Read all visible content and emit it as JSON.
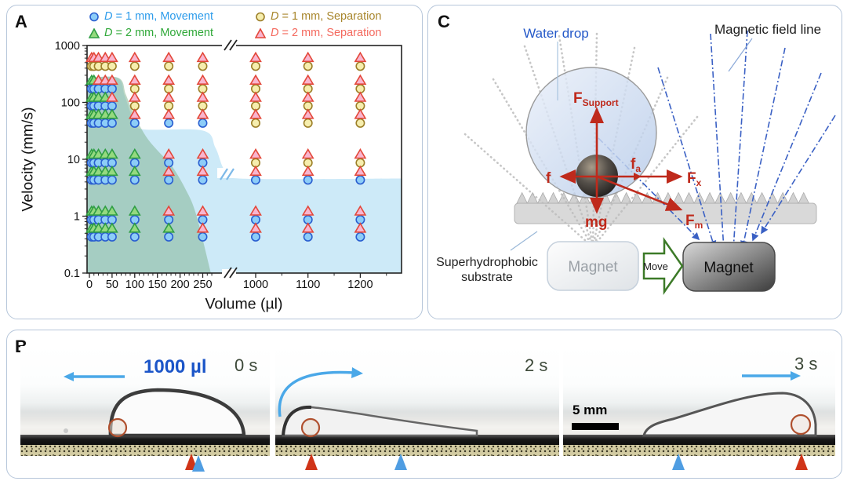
{
  "figure": {
    "panel_a": {
      "label": "A",
      "xlabel": "Volume (µl)",
      "ylabel": "Velocity (mm/s)",
      "legend": [
        {
          "marker": "circle",
          "d": "D",
          "rest": " = 1 mm, Movement",
          "fill": "#8dcdf8",
          "stroke": "#2a5fd0",
          "text_color": "#2d9ceb"
        },
        {
          "marker": "circle",
          "d": "D",
          "rest": " = 1 mm, Separation",
          "fill": "#f6eeae",
          "stroke": "#9c7f28",
          "text_color": "#a8862c"
        },
        {
          "marker": "triangle",
          "d": "D",
          "rest": " = 2 mm, Movement",
          "fill": "#95da7f",
          "stroke": "#2f9e44",
          "text_color": "#2fa838"
        },
        {
          "marker": "triangle",
          "d": "D",
          "rest": " = 2 mm, Separation",
          "fill": "#f9b5cf",
          "stroke": "#e3483a",
          "text_color": "#f4695e"
        }
      ]
    },
    "chart_data": {
      "type": "scatter",
      "xlabel": "Volume (µl)",
      "ylabel": "Velocity (mm/s)",
      "x_axis": {
        "scale": "linear-with-break",
        "ticks_left": [
          0,
          50,
          100,
          150,
          200,
          250
        ],
        "ticks_right": [
          1000,
          1100,
          1200
        ],
        "minor_left_step": 10,
        "minor_right": [
          1050,
          1150,
          1250
        ],
        "break_after": 250
      },
      "y_axis": {
        "scale": "log",
        "ticks": [
          0.1,
          1,
          10,
          100,
          1000
        ],
        "range": [
          0.1,
          1000
        ]
      },
      "velocities": [
        500,
        200,
        100,
        50,
        10,
        5,
        1,
        0.5
      ],
      "code_legend": {
        "P": "D = 2 mm, Separation (pink triangle)",
        "G": "D = 2 mm, Movement (green triangle)",
        "Y": "D = 1 mm, Separation (yellow circle)",
        "B": "D = 1 mm, Movement (blue circle)"
      },
      "points": [
        {
          "volume": 5,
          "codes": [
            "PY",
            "GB",
            "GB",
            "GB",
            "GB",
            "GB",
            "GB",
            "GB"
          ]
        },
        {
          "volume": 10,
          "codes": [
            "PY",
            "GB",
            "GB",
            "GB",
            "GB",
            "GB",
            "GB",
            "GB"
          ]
        },
        {
          "volume": 20,
          "codes": [
            "PY",
            "PB",
            "GB",
            "GB",
            "GB",
            "GB",
            "GB",
            "GB"
          ]
        },
        {
          "volume": 35,
          "codes": [
            "PY",
            "PB",
            "GB",
            "GB",
            "GB",
            "GB",
            "GB",
            "GB"
          ]
        },
        {
          "volume": 50,
          "codes": [
            "PY",
            "PB",
            "PB",
            "GB",
            "GB",
            "GB",
            "GB",
            "GB"
          ]
        },
        {
          "volume": 100,
          "codes": [
            "PY",
            "PY",
            "PY",
            "PB",
            "GB",
            "GB",
            "GB",
            "GB"
          ]
        },
        {
          "volume": 175,
          "codes": [
            "PY",
            "PY",
            "PY",
            "PB",
            "PB",
            "PB",
            "PB",
            "GB"
          ]
        },
        {
          "volume": 250,
          "codes": [
            "PY",
            "PY",
            "PY",
            "PB",
            "PB",
            "PB",
            "PB",
            "PB"
          ]
        },
        {
          "volume": 1000,
          "codes": [
            "PY",
            "PY",
            "PY",
            "PY",
            "PY",
            "PB",
            "PB",
            "PB"
          ]
        },
        {
          "volume": 1100,
          "codes": [
            "PY",
            "PY",
            "PY",
            "PY",
            "PY",
            "PB",
            "PB",
            "PB"
          ]
        },
        {
          "volume": 1200,
          "codes": [
            "PY",
            "PY",
            "PY",
            "PY",
            "PY",
            "PB",
            "PB",
            "PB"
          ]
        }
      ],
      "marker_styles": {
        "B": {
          "fill": "#8dcdf8",
          "stroke": "#2a5fd0"
        },
        "Y": {
          "fill": "#f6eeae",
          "stroke": "#9c7f28"
        },
        "G": {
          "fill": "#95da7f",
          "stroke": "#2f9e44"
        },
        "P": {
          "fill": "#f9b5cf",
          "stroke": "#e3483a"
        }
      },
      "regions": [
        {
          "name": "movement-1mm",
          "color": "#cdeaf8",
          "boundary": [
            [
              0,
              270
            ],
            [
              62,
              270
            ],
            [
              78,
              130
            ],
            [
              95,
              55
            ],
            [
              115,
              34
            ],
            [
              250,
              32
            ],
            [
              278,
              16
            ],
            [
              298,
              6.5
            ],
            [
              330,
              4.6
            ],
            [
              1285,
              4.6
            ]
          ]
        },
        {
          "name": "movement-both",
          "color": "rgba(125,175,140,0.5)",
          "boundary": [
            [
              0,
              270
            ],
            [
              64,
              270
            ],
            [
              80,
              140
            ],
            [
              95,
              70
            ],
            [
              110,
              40
            ],
            [
              130,
              22
            ],
            [
              155,
              13
            ],
            [
              180,
              8
            ],
            [
              210,
              3.2
            ],
            [
              235,
              1.1
            ],
            [
              268,
              0.1
            ]
          ]
        }
      ]
    },
    "panel_c": {
      "label": "C",
      "water_drop_label": "Water drop",
      "field_line_label": "Magnetic field line",
      "substrate_label_line1": "Superhydrophobic",
      "substrate_label_line2": "substrate",
      "magnet_left": "Magnet",
      "magnet_right": "Magnet",
      "move_label": "Move",
      "forces": {
        "support_main": "F",
        "support_sub": "Support",
        "f": "f",
        "fa_main": "f",
        "fa_sub": "a",
        "fx_main": "F",
        "fx_sub": "x",
        "mg": "mg",
        "fm_main": "F",
        "fm_sub": "m"
      }
    },
    "panel_b": {
      "label": "B",
      "volume_label": "1000 µl",
      "frames": [
        {
          "time": "0 s"
        },
        {
          "time": "2 s"
        },
        {
          "time": "3 s"
        }
      ],
      "scale_bar": "5 mm"
    }
  }
}
